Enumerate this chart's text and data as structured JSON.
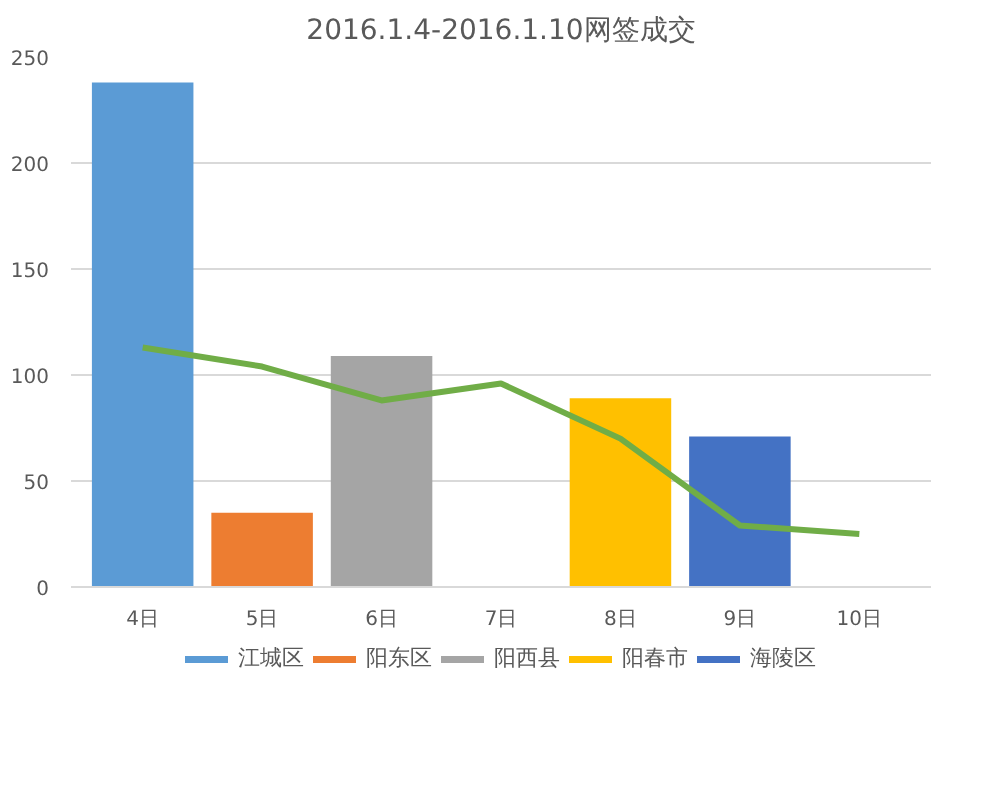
{
  "chart_data": {
    "type": "bar",
    "title": "2016.1.4-2016.1.10网签成交",
    "categories": [
      "4日",
      "5日",
      "6日",
      "7日",
      "8日",
      "9日",
      "10日"
    ],
    "series": [
      {
        "name": "江城区",
        "color": "#5b9bd5",
        "values": [
          238,
          null,
          null,
          null,
          null,
          null,
          null
        ]
      },
      {
        "name": "阳东区",
        "color": "#ed7d31",
        "values": [
          null,
          35,
          null,
          null,
          null,
          null,
          null
        ]
      },
      {
        "name": "阳西县",
        "color": "#a5a5a5",
        "values": [
          null,
          null,
          109,
          null,
          null,
          null,
          null
        ]
      },
      {
        "name": "阳春市",
        "color": "#ffc000",
        "values": [
          null,
          null,
          null,
          null,
          89,
          null,
          null
        ]
      },
      {
        "name": "海陵区",
        "color": "#4472c4",
        "values": [
          null,
          null,
          null,
          null,
          null,
          71,
          null
        ]
      },
      {
        "type": "line",
        "color": "#70ad47",
        "values": [
          113,
          104,
          88,
          96,
          70,
          29,
          25
        ]
      }
    ],
    "ylim": [
      0,
      250
    ],
    "yticks": [
      0,
      50,
      100,
      150,
      200,
      250
    ],
    "grid": "y",
    "legend": "bottom"
  }
}
